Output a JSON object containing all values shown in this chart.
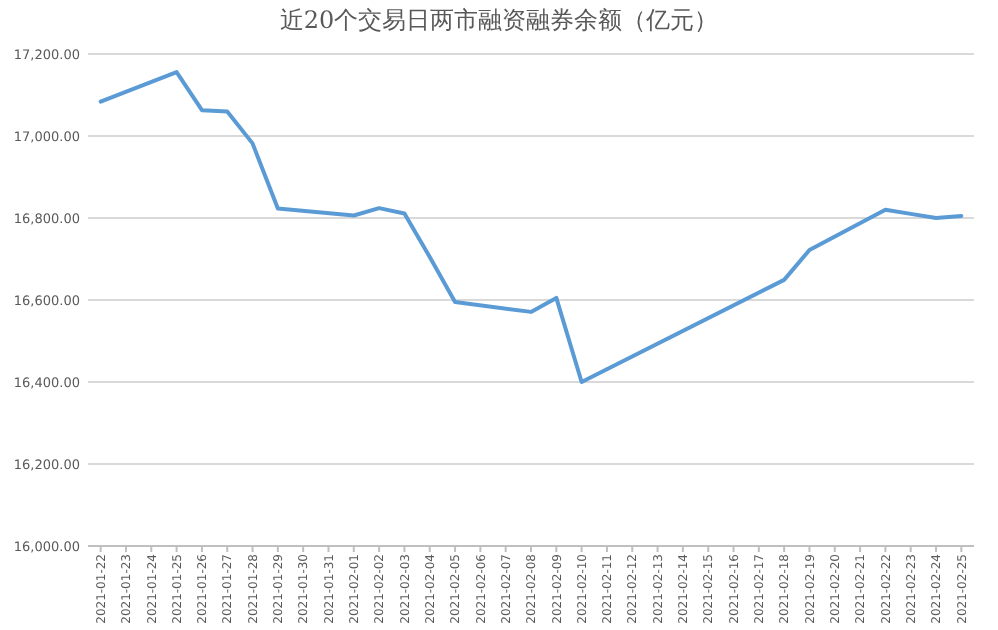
{
  "chart_data": {
    "type": "line",
    "title": "近20个交易日两市融资融券余额（亿元）",
    "x": [
      "2021-01-22",
      "2021-01-25",
      "2021-01-26",
      "2021-01-27",
      "2021-01-28",
      "2021-01-29",
      "2021-02-01",
      "2021-02-02",
      "2021-02-03",
      "2021-02-04",
      "2021-02-05",
      "2021-02-08",
      "2021-02-09",
      "2021-02-10",
      "2021-02-18",
      "2021-02-19",
      "2021-02-22",
      "2021-02-23",
      "2021-02-24",
      "2021-02-25"
    ],
    "series": [
      {
        "color": "#5b9bd5",
        "values": [
          17084,
          17156,
          17063,
          17060,
          16982,
          16823,
          16806,
          16824,
          16811,
          16705,
          16595,
          16571,
          16605,
          16400,
          16649,
          16722,
          16820,
          16810,
          16800,
          16805
        ]
      }
    ],
    "xlim": [
      "2021-01-21T12:00",
      "2021-02-25T12:00"
    ],
    "xticks": [
      "2021-01-22",
      "2021-01-23",
      "2021-01-24",
      "2021-01-25",
      "2021-01-26",
      "2021-01-27",
      "2021-01-28",
      "2021-01-29",
      "2021-01-30",
      "2021-01-31",
      "2021-02-01",
      "2021-02-02",
      "2021-02-03",
      "2021-02-04",
      "2021-02-05",
      "2021-02-06",
      "2021-02-07",
      "2021-02-08",
      "2021-02-09",
      "2021-02-10",
      "2021-02-11",
      "2021-02-12",
      "2021-02-13",
      "2021-02-14",
      "2021-02-15",
      "2021-02-16",
      "2021-02-17",
      "2021-02-18",
      "2021-02-19",
      "2021-02-20",
      "2021-02-21",
      "2021-02-22",
      "2021-02-23",
      "2021-02-24",
      "2021-02-25"
    ],
    "ylim": [
      16000,
      17200
    ],
    "yticks": [
      {
        "value": 16000,
        "label": "16,000.00"
      },
      {
        "value": 16200,
        "label": "16,200.00"
      },
      {
        "value": 16400,
        "label": "16,400.00"
      },
      {
        "value": 16600,
        "label": "16,600.00"
      },
      {
        "value": 16800,
        "label": "16,800.00"
      },
      {
        "value": 17000,
        "label": "17,000.00"
      },
      {
        "value": 17200,
        "label": "17,200.00"
      }
    ],
    "grid": "y",
    "marker": "none",
    "line_style": "solid"
  }
}
